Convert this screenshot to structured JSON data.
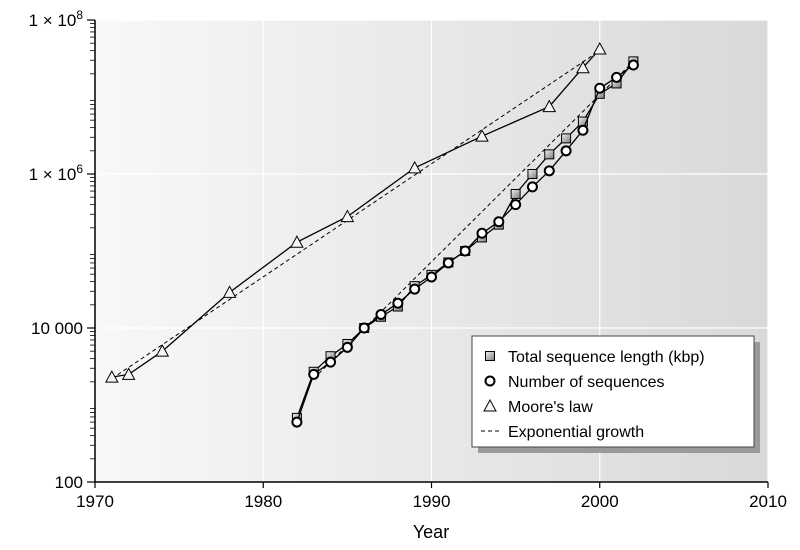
{
  "chart_data": {
    "type": "line",
    "title": "",
    "xlabel": "Year",
    "ylabel": "",
    "xlim": [
      1970,
      2010
    ],
    "ylim": [
      100,
      100000000
    ],
    "yscale": "log",
    "grid": true,
    "legend_position": "bottom-right",
    "x_ticks": [
      1970,
      1980,
      1990,
      2000,
      2010
    ],
    "x_tick_labels": [
      "1970",
      "1980",
      "1990",
      "2000",
      "2010"
    ],
    "y_ticks": [
      100,
      10000,
      1000000,
      100000000
    ],
    "y_tick_labels": [
      {
        "base": "100",
        "exp": ""
      },
      {
        "base": "10 000",
        "exp": ""
      },
      {
        "base": "1 × 10",
        "exp": "6"
      },
      {
        "base": "1 × 10",
        "exp": "8"
      }
    ],
    "series": [
      {
        "name": "Total sequence length (kbp)",
        "marker": "square",
        "x": [
          1982,
          1983,
          1984,
          1985,
          1986,
          1987,
          1988,
          1989,
          1990,
          1991,
          1992,
          1993,
          1994,
          1995,
          1996,
          1997,
          1998,
          1999,
          2000,
          2001,
          2002
        ],
        "y": [
          680,
          2700,
          4300,
          6200,
          10000,
          14000,
          19000,
          35000,
          49000,
          71000,
          100000,
          150000,
          220000,
          550000,
          1000000,
          1800000,
          2900000,
          4800000,
          11000000,
          15000000,
          29000000
        ]
      },
      {
        "name": "Number of sequences",
        "marker": "circle",
        "x": [
          1982,
          1983,
          1984,
          1985,
          1986,
          1987,
          1988,
          1989,
          1990,
          1991,
          1992,
          1993,
          1994,
          1995,
          1996,
          1997,
          1998,
          1999,
          2000,
          2001,
          2002
        ],
        "y": [
          600,
          2500,
          3600,
          5600,
          10000,
          15000,
          21000,
          32000,
          46000,
          70000,
          100000,
          170000,
          240000,
          400000,
          680000,
          1100000,
          2000000,
          3700000,
          13000000,
          18000000,
          26000000
        ]
      },
      {
        "name": "Moore's law",
        "marker": "triangle",
        "x": [
          1971,
          1972,
          1974,
          1978,
          1982,
          1985,
          1989,
          1993,
          1997,
          1999,
          2000
        ],
        "y": [
          2300,
          2500,
          5000,
          29000,
          130000,
          280000,
          1200000,
          3100000,
          7500000,
          24000000,
          42000000
        ]
      }
    ],
    "fits": [
      {
        "name": "Exponential growth",
        "x": [
          1971,
          2000
        ],
        "y": [
          2200,
          40000000
        ]
      },
      {
        "name": "Exponential growth",
        "x": [
          1983,
          2002
        ],
        "y": [
          2200,
          29000000
        ]
      }
    ],
    "legend": [
      {
        "label": "Total sequence length (kbp)",
        "marker": "square"
      },
      {
        "label": "Number of sequences",
        "marker": "circle"
      },
      {
        "label": "Moore's law",
        "marker": "triangle"
      },
      {
        "label": "Exponential growth",
        "marker": "dashed-line"
      }
    ]
  }
}
